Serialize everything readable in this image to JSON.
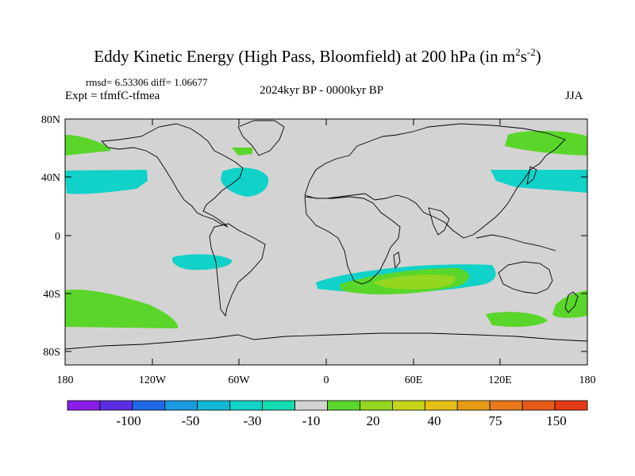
{
  "title": {
    "main": "Eddy Kinetic Energy (High Pass, Bloomfield) at 200 hPa (in m",
    "unit_sup1": "2",
    "unit_mid": "s",
    "unit_sup2": "-2",
    "close": ")"
  },
  "stats_text": "rmsd= 6.53306 diff= 1.06677",
  "experiment_text": "Expt = tfmfC-tfmea",
  "period_text": "2024kyr BP - 0000kyr BP",
  "season_text": "JJA",
  "lat_labels": [
    "80N",
    "40N",
    "0",
    "40S",
    "80S"
  ],
  "lon_labels": [
    "180",
    "120W",
    "60W",
    "0",
    "60E",
    "120E",
    "180"
  ],
  "colorbar": {
    "labels": [
      "-100",
      "-50",
      "-30",
      "-10",
      "20",
      "40",
      "75",
      "150"
    ],
    "colors": [
      "#8a1ee8",
      "#5a2ee0",
      "#1f68e6",
      "#1b9ce0",
      "#12b8d6",
      "#10d2c8",
      "#12dcb0",
      "#d3d3d3",
      "#5ad62a",
      "#94d620",
      "#c6d41a",
      "#e6c014",
      "#e69a14",
      "#e6781a",
      "#e65a1a",
      "#e23a16"
    ]
  },
  "colors": {
    "land_ocean_background": "#d3d3d3",
    "coastline": "#000000",
    "negative_anomaly": "#10d2c8",
    "positive_anomaly_low": "#5ad62a",
    "positive_anomaly_mid": "#94d620"
  }
}
